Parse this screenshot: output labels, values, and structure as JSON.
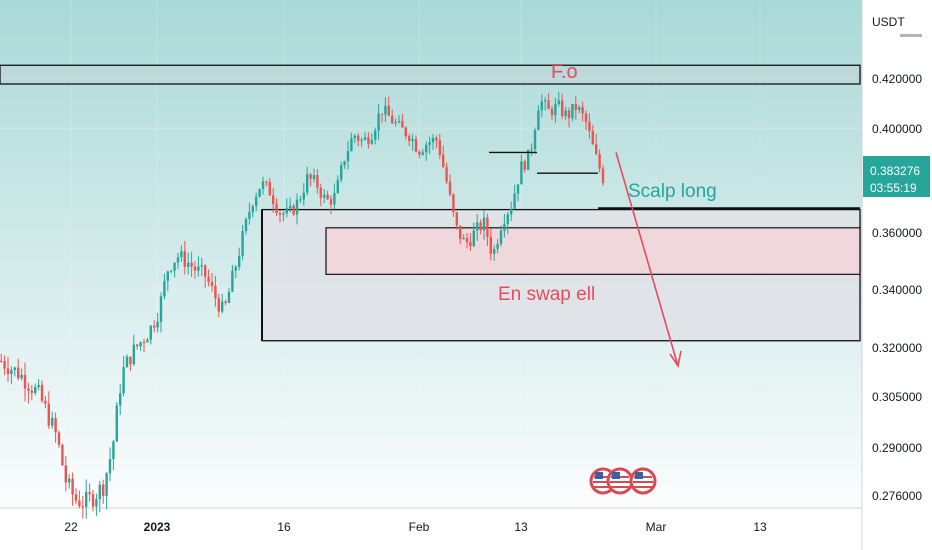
{
  "chart_data": {
    "type": "candlestick",
    "currency": "USDT",
    "price_label": {
      "value": "0.383276",
      "countdown": "03:55:19"
    },
    "y_ticks": [
      {
        "label": "0.420000",
        "value": 0.42
      },
      {
        "label": "0.400000",
        "value": 0.4
      },
      {
        "label": "0.360000",
        "value": 0.36
      },
      {
        "label": "0.340000",
        "value": 0.34
      },
      {
        "label": "0.320000",
        "value": 0.32
      },
      {
        "label": "0.305000",
        "value": 0.305
      },
      {
        "label": "0.290000",
        "value": 0.29
      },
      {
        "label": "0.276000",
        "value": 0.276
      }
    ],
    "x_ticks": [
      {
        "label": "22",
        "bold": false
      },
      {
        "label": "2023",
        "bold": true
      },
      {
        "label": "16",
        "bold": false
      },
      {
        "label": "Feb",
        "bold": false
      },
      {
        "label": "13",
        "bold": false
      },
      {
        "label": "Mar",
        "bold": false
      },
      {
        "label": "13",
        "bold": false
      }
    ],
    "annotations": [
      {
        "text": "F.o",
        "color": "#e74c5c"
      },
      {
        "text": "Scalp long",
        "color": "#26a69a"
      },
      {
        "text": "En swap ell",
        "color": "#e74c5c"
      }
    ],
    "zones": [
      {
        "name": "supply",
        "top": 0.4255,
        "bottom": 0.418
      },
      {
        "name": "demand-outer",
        "top": 0.369,
        "bottom": 0.3225
      },
      {
        "name": "demand-inner",
        "top": 0.362,
        "bottom": 0.3455
      }
    ],
    "key_levels": [
      0.391,
      0.383,
      0.3695
    ],
    "projection": {
      "from": 0.396,
      "to": 0.3145
    },
    "price_path": [
      0.316,
      0.314,
      0.312,
      0.309,
      0.306,
      0.3,
      0.293,
      0.28,
      0.275,
      0.274,
      0.276,
      0.279,
      0.29,
      0.312,
      0.318,
      0.322,
      0.326,
      0.333,
      0.348,
      0.352,
      0.35,
      0.347,
      0.345,
      0.338,
      0.332,
      0.345,
      0.358,
      0.372,
      0.379,
      0.376,
      0.368,
      0.367,
      0.372,
      0.381,
      0.379,
      0.372,
      0.374,
      0.389,
      0.398,
      0.395,
      0.399,
      0.408,
      0.404,
      0.4,
      0.398,
      0.392,
      0.395,
      0.396,
      0.38,
      0.362,
      0.356,
      0.36,
      0.364,
      0.352,
      0.365,
      0.371,
      0.385,
      0.39,
      0.412,
      0.407,
      0.409,
      0.405,
      0.409,
      0.403,
      0.39,
      0.38
    ],
    "colors": {
      "up": "#26a69a",
      "down": "#ef5350",
      "annotation_red": "#e74c5c",
      "annotation_teal": "#26a69a",
      "price_badge": "#26a69a",
      "zone_fill": "#e0e2e6",
      "inner_zone_fill": "#f2d3d8"
    }
  }
}
